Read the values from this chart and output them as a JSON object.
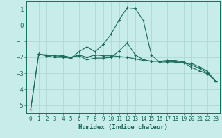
{
  "xlabel": "Humidex (Indice chaleur)",
  "bg_color": "#c8ece9",
  "grid_color": "#b0d8d2",
  "line_color": "#1a6b5a",
  "xlim": [
    -0.5,
    23.5
  ],
  "ylim": [
    -5.5,
    1.5
  ],
  "yticks": [
    -5,
    -4,
    -3,
    -2,
    -1,
    0,
    1
  ],
  "xticks": [
    0,
    1,
    2,
    3,
    4,
    5,
    6,
    7,
    8,
    9,
    10,
    11,
    12,
    13,
    14,
    15,
    16,
    17,
    18,
    19,
    20,
    21,
    22,
    23
  ],
  "curve1_x": [
    0,
    1,
    2,
    3,
    4,
    5,
    6,
    7,
    8,
    9,
    10,
    11,
    12,
    13,
    14,
    15,
    16,
    17,
    18,
    19,
    20,
    21,
    22,
    23
  ],
  "curve1_y": [
    -5.3,
    -1.8,
    -1.9,
    -1.85,
    -1.9,
    -2.0,
    -1.85,
    -2.0,
    -1.85,
    -1.9,
    -1.9,
    -1.95,
    -2.0,
    -2.1,
    -2.2,
    -2.25,
    -2.25,
    -2.25,
    -2.3,
    -2.35,
    -2.4,
    -2.6,
    -2.9,
    -3.5
  ],
  "curve2_x": [
    0,
    1,
    2,
    3,
    4,
    5,
    6,
    7,
    8,
    9,
    10,
    11,
    12,
    13,
    14,
    15,
    16,
    17,
    18,
    19,
    20,
    21,
    22,
    23
  ],
  "curve2_y": [
    -5.3,
    -1.8,
    -1.9,
    -2.0,
    -2.0,
    -2.05,
    -1.65,
    -1.35,
    -1.65,
    -1.2,
    -0.55,
    0.35,
    1.1,
    1.05,
    0.3,
    -1.85,
    -2.3,
    -2.3,
    -2.3,
    -2.3,
    -2.65,
    -2.85,
    -3.05,
    -3.5
  ],
  "curve3_x": [
    1,
    2,
    3,
    4,
    5,
    6,
    7,
    8,
    9,
    10,
    11,
    12,
    13,
    14,
    15,
    16,
    17,
    18,
    19,
    20,
    21,
    22,
    23
  ],
  "curve3_y": [
    -1.8,
    -1.85,
    -1.9,
    -1.95,
    -2.0,
    -1.9,
    -2.15,
    -2.05,
    -2.05,
    -2.0,
    -1.6,
    -1.1,
    -1.85,
    -2.15,
    -2.25,
    -2.25,
    -2.2,
    -2.2,
    -2.3,
    -2.5,
    -2.7,
    -3.0,
    -3.5
  ]
}
